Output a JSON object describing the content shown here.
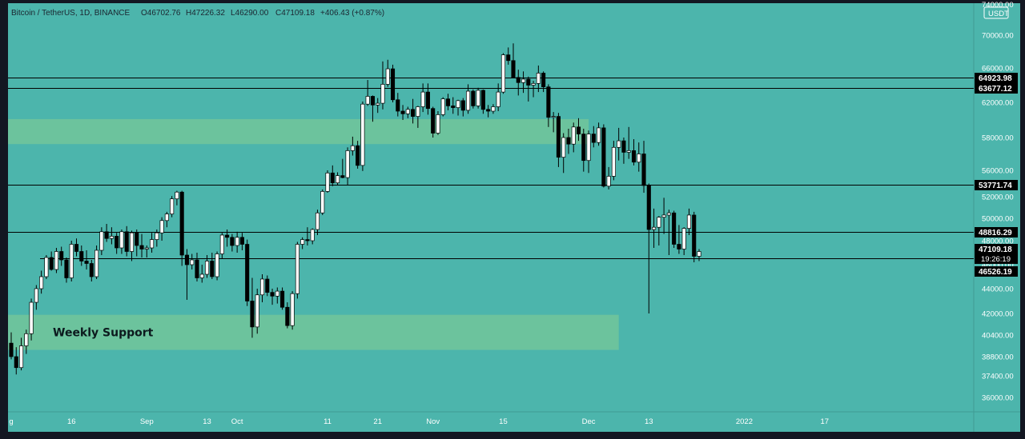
{
  "header": {
    "symbol": "Bitcoin / TetherUS, 1D, BINANCE",
    "open": "O46702.76",
    "high": "H47226.32",
    "low": "L46290.00",
    "close": "C47109.18",
    "change": "+406.43 (+0.87%)"
  },
  "currency_badge": "USDT",
  "countdown": "19:26:19",
  "colors": {
    "background": "#4cb5ac",
    "frame": "#131722",
    "zone": "#6cc39d",
    "up_body": "#ffffff",
    "down_body": "#000000",
    "line": "#000000"
  },
  "chart_data": {
    "type": "candlestick",
    "title": "Bitcoin / TetherUS, 1D, BINANCE",
    "y_ticks": [
      36000,
      37400,
      38800,
      40400,
      42000,
      44000,
      46000,
      48000,
      50000,
      52000,
      56000,
      58000,
      62000,
      66000,
      70000
    ],
    "y_tick_labels": [
      "36000.00",
      "37400.00",
      "38800.00",
      "40400.00",
      "42000.00",
      "44000.00",
      "46000.00",
      "48000.00",
      "50000.00",
      "52000.00",
      "56000.00",
      "58000.00",
      "62000.00",
      "66000.00",
      "70000.00"
    ],
    "top_partial_label": "74000.00",
    "x_ticks": [
      {
        "day": 0,
        "label": "g"
      },
      {
        "day": 12,
        "label": "16"
      },
      {
        "day": 27,
        "label": "Sep"
      },
      {
        "day": 39,
        "label": "13"
      },
      {
        "day": 45,
        "label": "Oct"
      },
      {
        "day": 63,
        "label": "11"
      },
      {
        "day": 73,
        "label": "21"
      },
      {
        "day": 84,
        "label": "Nov"
      },
      {
        "day": 98,
        "label": "15"
      },
      {
        "day": 115,
        "label": "Dec"
      },
      {
        "day": 127,
        "label": "13"
      },
      {
        "day": 146,
        "label": "2022"
      },
      {
        "day": 162,
        "label": "17"
      }
    ],
    "levels": [
      {
        "value": 64923.98,
        "label": "64923.98"
      },
      {
        "value": 63677.12,
        "label": "63677.12"
      },
      {
        "value": 53771.74,
        "label": "53771.74"
      },
      {
        "value": 48816.29,
        "label": "48816.29"
      },
      {
        "value": 46526.19,
        "label": "46526.19"
      }
    ],
    "current_price": {
      "value": 47109.18,
      "label": "47109.18"
    },
    "zones": [
      {
        "label": "",
        "top": 60100,
        "bottom": 57600,
        "day_start": 0,
        "day_end": 115
      },
      {
        "label": "Weekly Support",
        "top": 41900,
        "bottom": 39300,
        "day_start": 0,
        "day_end": 121
      }
    ],
    "candles": [
      [
        39800,
        40600,
        38600,
        38800
      ],
      [
        38800,
        39500,
        37500,
        38000
      ],
      [
        38000,
        40200,
        37800,
        39600
      ],
      [
        39600,
        40800,
        39000,
        40500
      ],
      [
        40500,
        43200,
        40000,
        42900
      ],
      [
        42900,
        44300,
        42300,
        44000
      ],
      [
        44000,
        45500,
        43600,
        45000
      ],
      [
        45000,
        46800,
        44800,
        46600
      ],
      [
        46600,
        47100,
        45500,
        45600
      ],
      [
        45600,
        47400,
        45300,
        47100
      ],
      [
        47100,
        47500,
        45900,
        46400
      ],
      [
        46400,
        46600,
        44500,
        44900
      ],
      [
        44900,
        48000,
        44600,
        47700
      ],
      [
        47700,
        48200,
        46700,
        47100
      ],
      [
        47100,
        47600,
        45900,
        46300
      ],
      [
        46300,
        47200,
        45600,
        46100
      ],
      [
        46100,
        46400,
        44600,
        45000
      ],
      [
        45000,
        47600,
        44800,
        47200
      ],
      [
        47200,
        49200,
        46800,
        48800
      ],
      [
        48800,
        49500,
        47900,
        48200
      ],
      [
        48200,
        49200,
        47700,
        48400
      ],
      [
        48400,
        48700,
        46900,
        47400
      ],
      [
        47400,
        49000,
        46900,
        48800
      ],
      [
        48800,
        49300,
        46700,
        47100
      ],
      [
        47100,
        48900,
        46300,
        48700
      ],
      [
        48700,
        49000,
        46700,
        47600
      ],
      [
        47600,
        48600,
        46600,
        47300
      ],
      [
        47300,
        47600,
        46600,
        47400
      ],
      [
        47400,
        48700,
        47000,
        48100
      ],
      [
        48100,
        49000,
        47500,
        48700
      ],
      [
        48700,
        50100,
        48000,
        49800
      ],
      [
        49800,
        50600,
        49200,
        50400
      ],
      [
        50400,
        52100,
        50100,
        51800
      ],
      [
        51800,
        52900,
        51200,
        52700
      ],
      [
        52700,
        52900,
        45900,
        46800
      ],
      [
        46800,
        47300,
        43100,
        46000
      ],
      [
        46000,
        46900,
        45600,
        46400
      ],
      [
        46400,
        47000,
        44600,
        44900
      ],
      [
        44900,
        46000,
        44500,
        45200
      ],
      [
        45200,
        46800,
        44900,
        46300
      ],
      [
        46300,
        47000,
        44800,
        45000
      ],
      [
        45000,
        47100,
        44700,
        46900
      ],
      [
        46900,
        48700,
        46500,
        48500
      ],
      [
        48500,
        49000,
        47500,
        48300
      ],
      [
        48300,
        48600,
        47100,
        47600
      ],
      [
        47600,
        48800,
        47000,
        48300
      ],
      [
        48300,
        48700,
        47200,
        47700
      ],
      [
        47700,
        48100,
        42600,
        43000
      ],
      [
        43000,
        44900,
        40200,
        41000
      ],
      [
        41000,
        44000,
        40500,
        43500
      ],
      [
        43500,
        45200,
        42900,
        44800
      ],
      [
        44800,
        45100,
        43400,
        43700
      ],
      [
        43700,
        44000,
        42700,
        43400
      ],
      [
        43400,
        44100,
        42800,
        43800
      ],
      [
        43800,
        44100,
        42300,
        42500
      ],
      [
        42500,
        42900,
        40900,
        41100
      ],
      [
        41100,
        43800,
        40800,
        43600
      ],
      [
        43600,
        47900,
        43200,
        47700
      ],
      [
        47700,
        48300,
        47300,
        48100
      ],
      [
        48100,
        49200,
        47600,
        48000
      ],
      [
        48000,
        49100,
        47700,
        49000
      ],
      [
        49000,
        50800,
        48500,
        50500
      ],
      [
        50500,
        53100,
        50300,
        52800
      ],
      [
        52800,
        56000,
        52600,
        55600
      ],
      [
        55600,
        56300,
        53600,
        54100
      ],
      [
        54100,
        55700,
        53800,
        55200
      ],
      [
        55200,
        56700,
        54800,
        54900
      ],
      [
        54900,
        57400,
        53800,
        57200
      ],
      [
        57200,
        58100,
        56900,
        57500
      ],
      [
        57500,
        57800,
        56100,
        56300
      ],
      [
        56300,
        62100,
        55900,
        61800
      ],
      [
        61800,
        64600,
        61600,
        62700
      ],
      [
        62700,
        62800,
        59800,
        61700
      ],
      [
        61700,
        62500,
        60800,
        61900
      ],
      [
        61900,
        66800,
        61200,
        64100
      ],
      [
        64100,
        67000,
        63800,
        65900
      ],
      [
        65900,
        66400,
        62000,
        62300
      ],
      [
        62300,
        63100,
        60400,
        61000
      ],
      [
        61000,
        61700,
        60000,
        60700
      ],
      [
        60700,
        61500,
        60200,
        61200
      ],
      [
        61200,
        62400,
        59600,
        60400
      ],
      [
        60400,
        61600,
        59100,
        61500
      ],
      [
        61500,
        64200,
        60900,
        63200
      ],
      [
        63200,
        64200,
        60600,
        61300
      ],
      [
        61300,
        61500,
        58000,
        58500
      ],
      [
        58500,
        61000,
        58300,
        60600
      ],
      [
        60600,
        62600,
        60400,
        62400
      ],
      [
        62400,
        63000,
        61100,
        61600
      ],
      [
        61600,
        62600,
        60700,
        61400
      ],
      [
        61400,
        62300,
        60500,
        62200
      ],
      [
        62200,
        62500,
        60400,
        61100
      ],
      [
        61100,
        64100,
        60700,
        63300
      ],
      [
        63300,
        63500,
        61300,
        61600
      ],
      [
        61600,
        63700,
        61300,
        63400
      ],
      [
        63400,
        63500,
        60700,
        61200
      ],
      [
        61200,
        61700,
        60300,
        61000
      ],
      [
        61000,
        61800,
        60700,
        61500
      ],
      [
        61500,
        64200,
        61000,
        63200
      ],
      [
        63200,
        67800,
        63000,
        67600
      ],
      [
        67600,
        68500,
        66400,
        66900
      ],
      [
        66900,
        69000,
        65200,
        64900
      ],
      [
        64900,
        65800,
        62800,
        64300
      ],
      [
        64300,
        65600,
        63100,
        64700
      ],
      [
        64700,
        65000,
        62100,
        64000
      ],
      [
        64000,
        64500,
        62600,
        64200
      ],
      [
        64200,
        66300,
        63200,
        65400
      ],
      [
        65400,
        65600,
        63200,
        63800
      ],
      [
        63800,
        64100,
        59200,
        60300
      ],
      [
        60300,
        60900,
        58600,
        60400
      ],
      [
        60400,
        60800,
        56200,
        56800
      ],
      [
        56800,
        58500,
        55600,
        58000
      ],
      [
        58000,
        59000,
        57000,
        57600
      ],
      [
        57600,
        59700,
        57100,
        59200
      ],
      [
        59200,
        60200,
        57800,
        58400
      ],
      [
        58400,
        59000,
        55800,
        56600
      ],
      [
        56600,
        58800,
        55600,
        58400
      ],
      [
        58400,
        59300,
        57400,
        57700
      ],
      [
        57700,
        59700,
        57500,
        59100
      ],
      [
        59100,
        59500,
        53400,
        53600
      ],
      [
        53600,
        56200,
        53100,
        55100
      ],
      [
        55100,
        57800,
        54500,
        57400
      ],
      [
        57400,
        59100,
        56600,
        57800
      ],
      [
        57800,
        58000,
        56400,
        57100
      ],
      [
        57100,
        59200,
        56700,
        57200
      ],
      [
        57200,
        57900,
        56300,
        56500
      ],
      [
        56500,
        57700,
        55800,
        57000
      ],
      [
        57000,
        57800,
        52600,
        53700
      ],
      [
        53700,
        54000,
        42000,
        49000
      ],
      [
        49000,
        50900,
        47400,
        49200
      ],
      [
        49200,
        50200,
        47600,
        50100
      ],
      [
        50100,
        51900,
        48600,
        50300
      ],
      [
        50300,
        50800,
        46800,
        50500
      ],
      [
        50500,
        50700,
        47400,
        47700
      ],
      [
        47700,
        49400,
        46900,
        47300
      ],
      [
        47300,
        49200,
        46800,
        49100
      ],
      [
        49100,
        50900,
        48500,
        50300
      ],
      [
        50300,
        50600,
        46200,
        46700
      ],
      [
        46700,
        47300,
        46300,
        47100
      ]
    ]
  }
}
